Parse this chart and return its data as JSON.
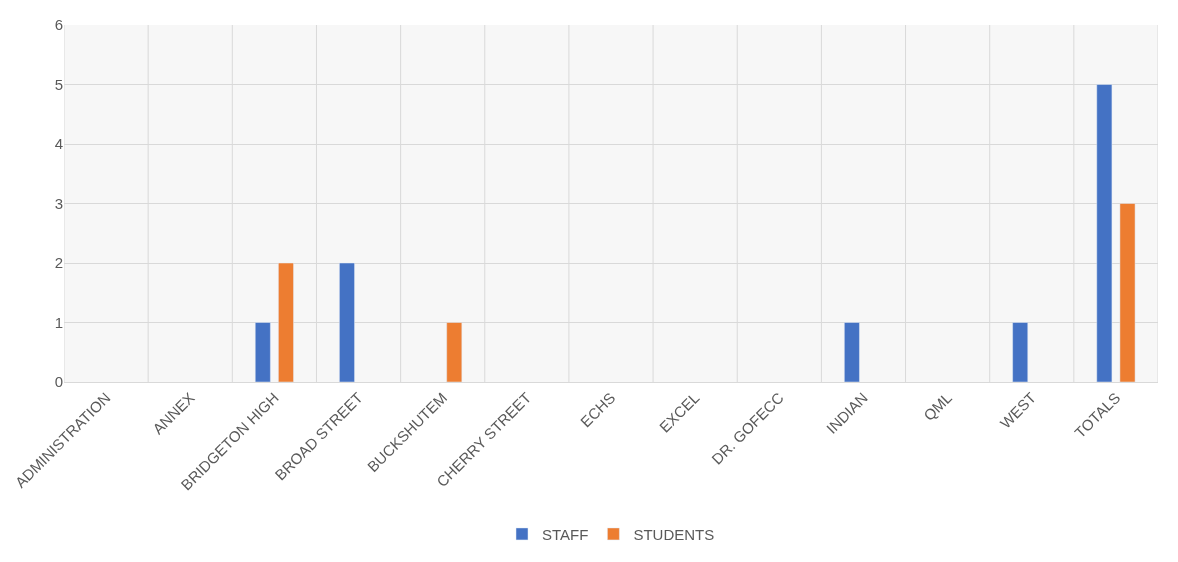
{
  "chart_data": {
    "type": "bar",
    "categories": [
      "ADMINISTRATION",
      "ANNEX",
      "BRIDGETON HIGH",
      "BROAD STREET",
      "BUCKSHUTEM",
      "CHERRY STREET",
      "ECHS",
      "EXCEL",
      "DR. GOFECC",
      "INDIAN",
      "QML",
      "WEST",
      "TOTALS"
    ],
    "series": [
      {
        "name": "STAFF",
        "color": "#4472c4",
        "values": [
          null,
          null,
          1,
          2,
          null,
          null,
          null,
          null,
          null,
          1,
          null,
          1,
          5
        ]
      },
      {
        "name": "STUDENTS",
        "color": "#ed7d31",
        "values": [
          null,
          null,
          2,
          null,
          1,
          null,
          null,
          null,
          null,
          null,
          null,
          null,
          3
        ]
      }
    ],
    "ylim": [
      0,
      6
    ],
    "yticks": [
      0,
      1,
      2,
      3,
      4,
      5,
      6
    ],
    "grid": true,
    "legend": "bottom"
  }
}
